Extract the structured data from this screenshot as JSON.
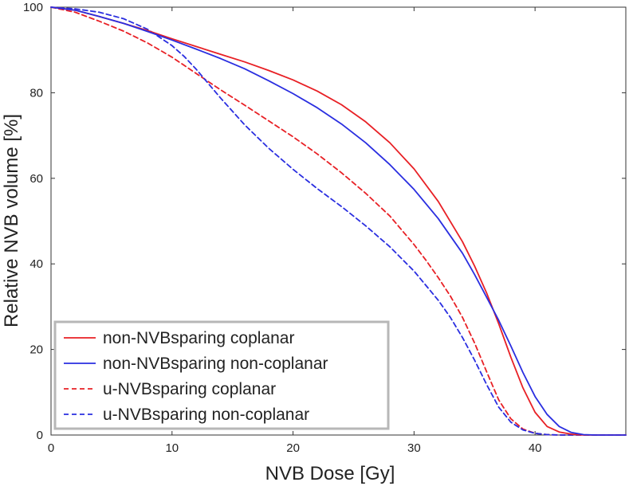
{
  "chart_data": {
    "type": "line",
    "title": "",
    "xlabel": "NVB Dose [Gy]",
    "ylabel": "Relative NVB volume [%]",
    "xlim": [
      0,
      47.5
    ],
    "ylim": [
      0,
      100
    ],
    "xticks": [
      "0",
      "10",
      "20",
      "30",
      "40"
    ],
    "yticks": [
      "0",
      "20",
      "40",
      "60",
      "80",
      "100"
    ],
    "grid": false,
    "legend_position": "bottom-left",
    "series": [
      {
        "name": "non-NVBsparing coplanar",
        "color": "#e82025",
        "style": "solid",
        "x": [
          0,
          2,
          4,
          6,
          8,
          10,
          12,
          14,
          16,
          18,
          20,
          22,
          24,
          26,
          28,
          30,
          32,
          34,
          35,
          36,
          37,
          38,
          39,
          40,
          41,
          42,
          43,
          44,
          45,
          47.5
        ],
        "y": [
          100,
          99.3,
          97.8,
          96.2,
          94.5,
          92.6,
          90.8,
          89,
          87.2,
          85.2,
          83,
          80.4,
          77.2,
          73.2,
          68.3,
          62.2,
          54.6,
          45.2,
          39.5,
          33.2,
          26,
          18.2,
          11,
          5.3,
          2,
          0.7,
          0.2,
          0,
          0,
          0
        ]
      },
      {
        "name": "non-NVBsparing non-coplanar",
        "color": "#2a2ee0",
        "style": "solid",
        "x": [
          0,
          2,
          4,
          6,
          8,
          10,
          12,
          14,
          16,
          18,
          20,
          22,
          24,
          26,
          28,
          30,
          32,
          34,
          35,
          36,
          37,
          38,
          39,
          40,
          41,
          42,
          43,
          44,
          45,
          47.5
        ],
        "y": [
          100,
          99.3,
          97.8,
          96.2,
          94.3,
          92.3,
          90.2,
          88,
          85.6,
          82.8,
          79.8,
          76.5,
          72.7,
          68.3,
          63.2,
          57.4,
          50.6,
          42.5,
          37.5,
          32.2,
          26.8,
          20.8,
          14.6,
          9,
          4.8,
          2,
          0.6,
          0.1,
          0,
          0
        ]
      },
      {
        "name": "u-NVBsparing coplanar",
        "color": "#e82025",
        "style": "dashed",
        "x": [
          0,
          2,
          4,
          6,
          8,
          10,
          12,
          14,
          16,
          18,
          20,
          22,
          24,
          26,
          28,
          30,
          31,
          32,
          33,
          34,
          35,
          36,
          37,
          38,
          39,
          40,
          41,
          42,
          47.5
        ],
        "y": [
          100,
          98.8,
          96.7,
          94.4,
          91.6,
          88.3,
          84.5,
          80.7,
          77.1,
          73.4,
          69.7,
          65.7,
          61.3,
          56.5,
          51.2,
          44.5,
          40.8,
          36.8,
          32.5,
          27.5,
          21.5,
          14.8,
          8.2,
          3.8,
          1.4,
          0.4,
          0.1,
          0,
          0
        ]
      },
      {
        "name": "u-NVBsparing non-coplanar",
        "color": "#2a2ee0",
        "style": "dashed",
        "x": [
          0,
          2,
          4,
          6,
          8,
          10,
          11,
          12,
          14,
          16,
          18,
          20,
          22,
          24,
          26,
          28,
          30,
          32,
          33,
          34,
          35,
          36,
          37,
          38,
          39,
          40,
          41,
          42,
          47.5
        ],
        "y": [
          100,
          99.6,
          98.8,
          97.3,
          94.8,
          91,
          88.5,
          85.5,
          78.8,
          72.5,
          67,
          62.1,
          57.6,
          53.4,
          48.9,
          44,
          38.3,
          31.5,
          27.5,
          22.8,
          17.5,
          11.8,
          6.5,
          3,
          1.2,
          0.4,
          0.1,
          0,
          0
        ]
      }
    ]
  }
}
